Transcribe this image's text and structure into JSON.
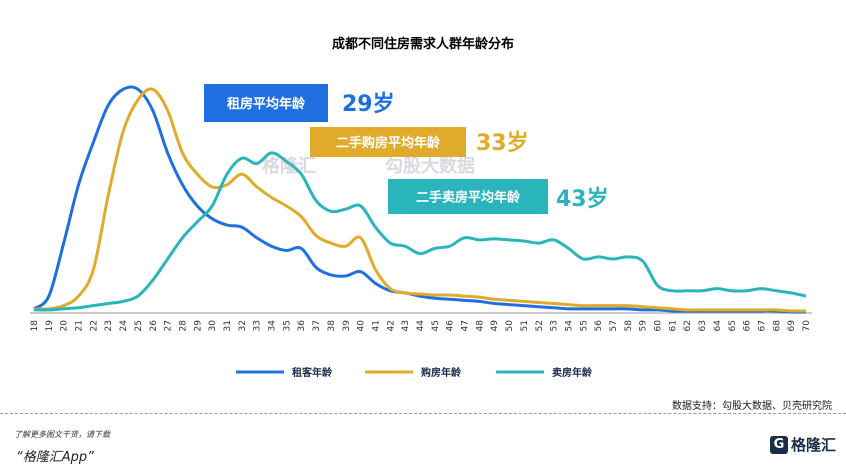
{
  "chart_data": {
    "type": "line",
    "title": "成都不同住房需求人群年龄分布",
    "x": [
      18,
      19,
      20,
      21,
      22,
      23,
      24,
      25,
      26,
      27,
      28,
      29,
      30,
      31,
      32,
      33,
      34,
      35,
      36,
      37,
      38,
      39,
      40,
      41,
      42,
      43,
      44,
      45,
      46,
      47,
      48,
      49,
      50,
      51,
      52,
      53,
      54,
      55,
      56,
      57,
      58,
      59,
      60,
      61,
      62,
      63,
      64,
      65,
      66,
      67,
      68,
      69,
      70
    ],
    "series": [
      {
        "name": "租客年龄",
        "color": "#1f6fe0",
        "values": [
          3,
          15,
          65,
          120,
          160,
          195,
          210,
          210,
          190,
          150,
          120,
          100,
          88,
          82,
          80,
          70,
          62,
          58,
          60,
          42,
          35,
          34,
          38,
          27,
          20,
          18,
          15,
          13,
          12,
          11,
          10,
          8,
          7,
          6,
          5,
          4,
          3,
          3,
          3,
          3,
          3,
          2,
          2,
          1,
          1,
          1,
          1,
          1,
          1,
          1,
          1,
          0,
          0
        ]
      },
      {
        "name": "购房年龄",
        "color": "#e0aa2a",
        "values": [
          3,
          3,
          6,
          15,
          40,
          110,
          170,
          200,
          210,
          190,
          150,
          130,
          118,
          120,
          130,
          118,
          108,
          100,
          90,
          72,
          65,
          62,
          70,
          40,
          22,
          18,
          17,
          16,
          16,
          15,
          14,
          12,
          11,
          10,
          9,
          8,
          7,
          6,
          6,
          6,
          6,
          5,
          4,
          3,
          2,
          2,
          2,
          2,
          2,
          2,
          2,
          1,
          1
        ]
      },
      {
        "name": "卖房年龄",
        "color": "#2ab5bd",
        "values": [
          2,
          2,
          3,
          4,
          6,
          8,
          10,
          15,
          30,
          50,
          70,
          85,
          100,
          130,
          145,
          140,
          150,
          142,
          130,
          105,
          95,
          97,
          100,
          80,
          65,
          62,
          55,
          60,
          62,
          70,
          68,
          69,
          68,
          67,
          65,
          68,
          60,
          50,
          52,
          50,
          52,
          48,
          25,
          20,
          20,
          20,
          22,
          20,
          20,
          22,
          20,
          18,
          15
        ]
      }
    ],
    "ylim": [
      0,
      215
    ],
    "callouts": [
      {
        "label": "租房平均年龄",
        "value": "29岁",
        "color": "#1f6fe0"
      },
      {
        "label": "二手购房平均年龄",
        "value": "33岁",
        "color": "#e0aa2a"
      },
      {
        "label": "二手卖房平均年龄",
        "value": "43岁",
        "color": "#2ab5bd"
      }
    ]
  },
  "watermark": {
    "left": "格隆汇",
    "right": "勾股大数据"
  },
  "source": "数据支持：勾股大数据、贝壳研究院",
  "footer": {
    "note": "了解更多图文干货，请下载",
    "app": "“格隆汇App”",
    "logo_text": "格隆汇"
  }
}
